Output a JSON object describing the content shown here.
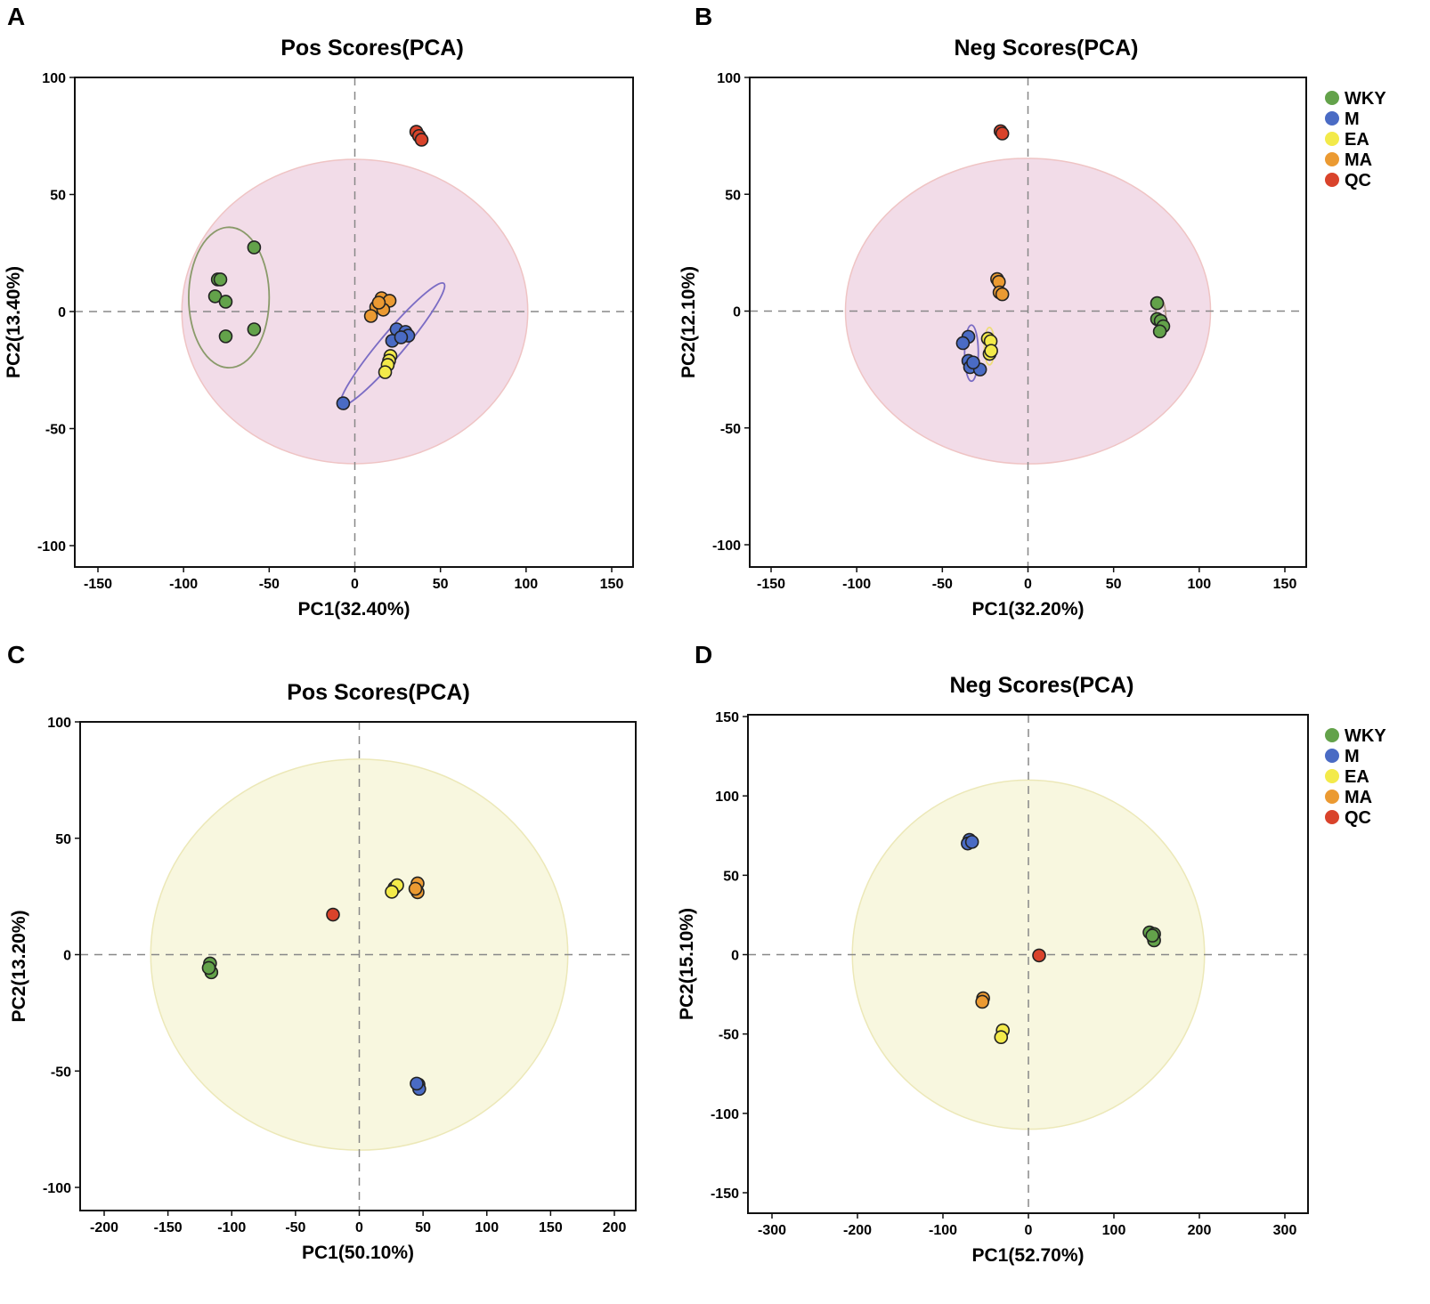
{
  "colors": {
    "WKY": "#63a24a",
    "M": "#4a6bc4",
    "EA": "#f3ea4a",
    "MA": "#eb9a32",
    "QC": "#d9432b"
  },
  "legend": [
    "WKY",
    "M",
    "EA",
    "MA",
    "QC"
  ],
  "chart_data": [
    {
      "panel_label": "A",
      "type": "scatter",
      "title": "Pos Scores(PCA)",
      "xlabel": "PC1(32.40%)",
      "ylabel": "PC2(13.40%)",
      "xlim": [
        -150,
        150
      ],
      "ylim": [
        -100,
        100
      ],
      "xticks": [
        -150,
        -100,
        -50,
        0,
        50,
        100,
        150
      ],
      "yticks": [
        -100,
        -50,
        0,
        50,
        100
      ],
      "confidence_ellipse": {
        "rx": 101,
        "ry": 65,
        "fill": "#f2dce8",
        "stroke": "#efc4c4"
      },
      "group_ellipses": [
        {
          "group": "WKY",
          "cx": -73.5,
          "cy": 6,
          "rx": 23.5,
          "ry": 30,
          "color": "#8a9a6a"
        },
        {
          "group": "M",
          "from": [
            -8,
            -40
          ],
          "to": [
            52,
            12
          ],
          "width": 7,
          "color": "#7b6cc4"
        }
      ],
      "series": [
        {
          "name": "WKY",
          "points": [
            [
              -58.8,
              27.4
            ],
            [
              -80,
              13.7
            ],
            [
              -78.5,
              13.7
            ],
            [
              -81.6,
              6.5
            ],
            [
              -75.4,
              4.2
            ],
            [
              -75.4,
              -10.6
            ],
            [
              -58.8,
              -7.6
            ]
          ]
        },
        {
          "name": "MA",
          "points": [
            [
              15.6,
              5.7
            ],
            [
              12.5,
              1.9
            ],
            [
              20.3,
              4.6
            ],
            [
              16.6,
              0.8
            ],
            [
              9.4,
              -1.9
            ],
            [
              14,
              3.8
            ]
          ]
        },
        {
          "name": "M",
          "points": [
            [
              24.4,
              -7.6
            ],
            [
              29.6,
              -8.7
            ],
            [
              21.8,
              -12.5
            ],
            [
              31.2,
              -10.3
            ],
            [
              27,
              -11
            ],
            [
              -6.8,
              -39.2
            ]
          ]
        },
        {
          "name": "EA",
          "points": [
            [
              20.8,
              -19
            ],
            [
              20,
              -21
            ],
            [
              19.2,
              -22.8
            ],
            [
              17.7,
              -25.9
            ]
          ]
        },
        {
          "name": "QC",
          "points": [
            [
              35.9,
              76.8
            ],
            [
              37.5,
              75
            ],
            [
              39,
              73.4
            ]
          ]
        }
      ]
    },
    {
      "panel_label": "B",
      "type": "scatter",
      "title": "Neg Scores(PCA)",
      "xlabel": "PC1(32.20%)",
      "ylabel": "PC2(12.10%)",
      "xlim": [
        -150,
        150
      ],
      "ylim": [
        -100,
        100
      ],
      "xticks": [
        -150,
        -100,
        -50,
        0,
        50,
        100,
        150
      ],
      "yticks": [
        -100,
        -50,
        0,
        50,
        100
      ],
      "confidence_ellipse": {
        "rx": 106.6,
        "ry": 65.4,
        "fill": "#f2dce8",
        "stroke": "#efc4c4"
      },
      "group_ellipses": [
        {
          "group": "M",
          "cx": -33,
          "cy": -18,
          "rx": 4,
          "ry": 12,
          "color": "#7b6cc4"
        },
        {
          "group": "EA",
          "cx": -22.5,
          "cy": -15,
          "rx": 3,
          "ry": 8,
          "color": "#eedd77"
        },
        {
          "group": "WKY",
          "cx": 77.5,
          "cy": -3,
          "rx": 3,
          "ry": 8,
          "color": "#b39a8a"
        }
      ],
      "series": [
        {
          "name": "QC",
          "points": [
            [
              -16,
              77
            ],
            [
              -15,
              76
            ]
          ]
        },
        {
          "name": "MA",
          "points": [
            [
              -18,
              13.7
            ],
            [
              -17,
              12.5
            ],
            [
              -16.6,
              8
            ],
            [
              -15,
              7.2
            ]
          ]
        },
        {
          "name": "EA",
          "points": [
            [
              -23.4,
              -11.8
            ],
            [
              -21.8,
              -12.9
            ],
            [
              -22.4,
              -18.3
            ],
            [
              -21.5,
              -17
            ]
          ]
        },
        {
          "name": "M",
          "points": [
            [
              -34.8,
              -11
            ],
            [
              -38,
              -13.7
            ],
            [
              -34.8,
              -21.3
            ],
            [
              -33.8,
              -24
            ],
            [
              -28,
              -25
            ],
            [
              -32,
              -22
            ]
          ]
        },
        {
          "name": "WKY",
          "points": [
            [
              75.4,
              3.4
            ],
            [
              75.4,
              -3.4
            ],
            [
              77.5,
              -4.2
            ],
            [
              79,
              -6.5
            ],
            [
              77,
              -8.7
            ]
          ]
        }
      ]
    },
    {
      "panel_label": "C",
      "type": "scatter",
      "title": "Pos Scores(PCA)",
      "xlabel": "PC1(50.10%)",
      "ylabel": "PC2(13.20%)",
      "xlim": [
        -200,
        200
      ],
      "ylim": [
        -100,
        100
      ],
      "xticks": [
        -200,
        -150,
        -100,
        -50,
        0,
        50,
        100,
        150,
        200
      ],
      "yticks": [
        -100,
        -50,
        0,
        50,
        100
      ],
      "confidence_ellipse": {
        "rx": 163.5,
        "ry": 84,
        "fill": "#f8f7df",
        "stroke": "#ece8b8"
      },
      "group_ellipses": [],
      "series": [
        {
          "name": "QC",
          "points": [
            [
              -20.6,
              17.2
            ]
          ]
        },
        {
          "name": "WKY",
          "points": [
            [
              -117,
              -3.8
            ],
            [
              -116,
              -7.6
            ],
            [
              -118,
              -5.7
            ]
          ]
        },
        {
          "name": "EA",
          "points": [
            [
              27.6,
              28.7
            ],
            [
              29.7,
              29.8
            ],
            [
              25.5,
              27
            ]
          ]
        },
        {
          "name": "MA",
          "points": [
            [
              45.7,
              30.6
            ],
            [
              45.7,
              26.8
            ],
            [
              44,
              28.3
            ]
          ]
        },
        {
          "name": "M",
          "points": [
            [
              46.4,
              -55.8
            ],
            [
              47,
              -57.7
            ],
            [
              45,
              -55.4
            ]
          ]
        }
      ]
    },
    {
      "panel_label": "D",
      "type": "scatter",
      "title": "Neg Scores(PCA)",
      "xlabel": "PC1(52.70%)",
      "ylabel": "PC2(15.10%)",
      "xlim": [
        -300,
        300
      ],
      "ylim": [
        -150,
        150
      ],
      "xticks": [
        -300,
        -200,
        -100,
        0,
        100,
        200,
        300
      ],
      "yticks": [
        -150,
        -100,
        -50,
        0,
        50,
        100,
        150
      ],
      "confidence_ellipse": {
        "rx": 206,
        "ry": 110,
        "fill": "#f8f7df",
        "stroke": "#ece8b8"
      },
      "group_ellipses": [],
      "series": [
        {
          "name": "QC",
          "points": [
            [
              12.5,
              -0.5
            ]
          ]
        },
        {
          "name": "M",
          "points": [
            [
              -69,
              72.3
            ],
            [
              -71,
              70
            ],
            [
              -66,
              71
            ]
          ]
        },
        {
          "name": "MA",
          "points": [
            [
              -53,
              -27.5
            ],
            [
              -54,
              -29.7
            ]
          ]
        },
        {
          "name": "EA",
          "points": [
            [
              -30,
              -47.7
            ],
            [
              -32,
              -52
            ]
          ]
        },
        {
          "name": "WKY",
          "points": [
            [
              141.7,
              14
            ],
            [
              147,
              13
            ],
            [
              147,
              9
            ],
            [
              145,
              12
            ]
          ]
        }
      ]
    }
  ]
}
